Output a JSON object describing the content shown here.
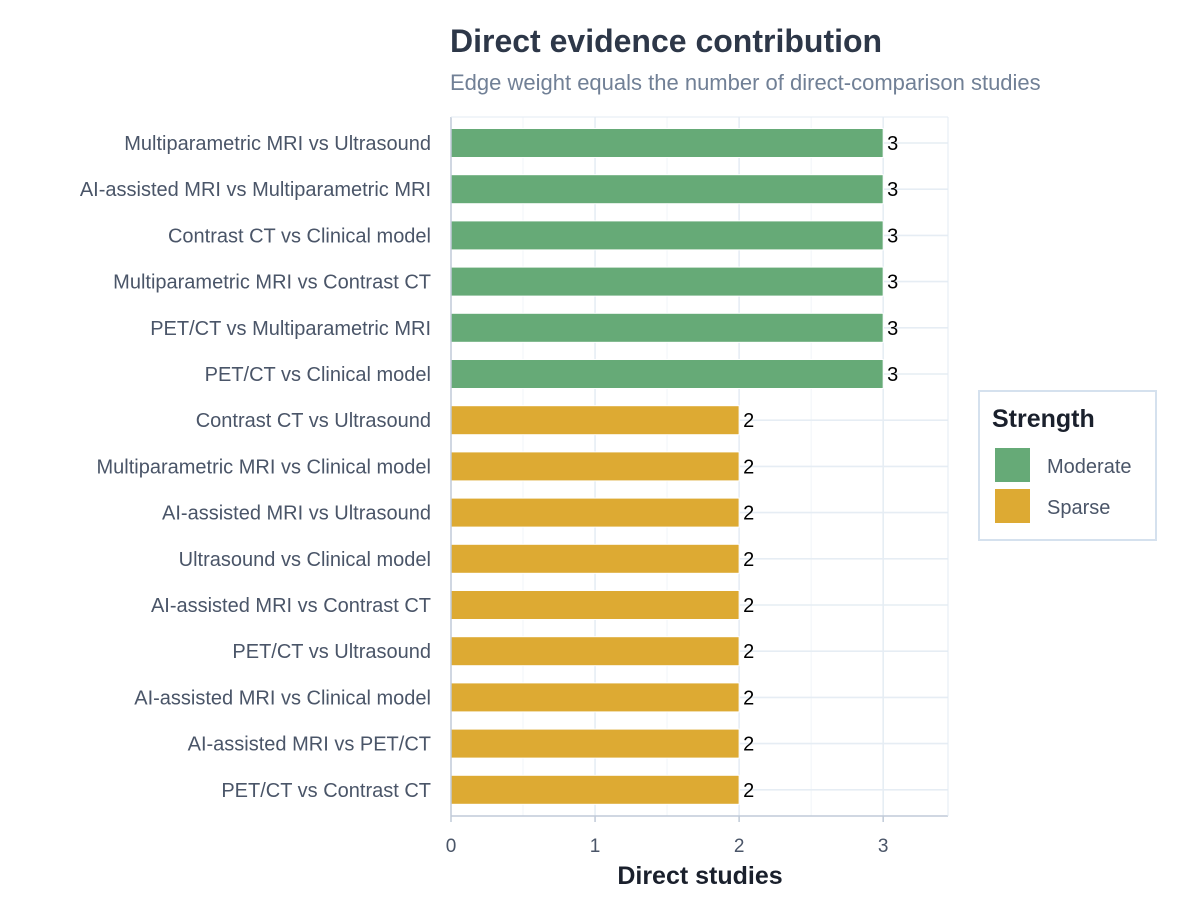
{
  "chart_data": {
    "type": "bar",
    "orientation": "horizontal",
    "title": "Direct evidence contribution",
    "subtitle": "Edge weight equals the number of direct-comparison studies",
    "xlabel": "Direct studies",
    "ylabel": "",
    "xlim": [
      0,
      3.45
    ],
    "xticks": [
      "0",
      "1",
      "2",
      "3"
    ],
    "grid": true,
    "legend": {
      "title": "Strength",
      "position": "right",
      "entries": [
        {
          "label": "Moderate",
          "color": "#66aa77"
        },
        {
          "label": "Sparse",
          "color": "#ddaa33"
        }
      ]
    },
    "bars": [
      {
        "label": "Multiparametric MRI vs Ultrasound",
        "value": 3,
        "value_label": "3",
        "strength": "Moderate"
      },
      {
        "label": "AI-assisted MRI vs Multiparametric MRI",
        "value": 3,
        "value_label": "3",
        "strength": "Moderate"
      },
      {
        "label": "Contrast CT vs Clinical model",
        "value": 3,
        "value_label": "3",
        "strength": "Moderate"
      },
      {
        "label": "Multiparametric MRI vs Contrast CT",
        "value": 3,
        "value_label": "3",
        "strength": "Moderate"
      },
      {
        "label": "PET/CT vs Multiparametric MRI",
        "value": 3,
        "value_label": "3",
        "strength": "Moderate"
      },
      {
        "label": "PET/CT vs Clinical model",
        "value": 3,
        "value_label": "3",
        "strength": "Moderate"
      },
      {
        "label": "Contrast CT vs Ultrasound",
        "value": 2,
        "value_label": "2",
        "strength": "Sparse"
      },
      {
        "label": "Multiparametric MRI vs Clinical model",
        "value": 2,
        "value_label": "2",
        "strength": "Sparse"
      },
      {
        "label": "AI-assisted MRI vs Ultrasound",
        "value": 2,
        "value_label": "2",
        "strength": "Sparse"
      },
      {
        "label": "Ultrasound vs Clinical model",
        "value": 2,
        "value_label": "2",
        "strength": "Sparse"
      },
      {
        "label": "AI-assisted MRI vs Contrast CT",
        "value": 2,
        "value_label": "2",
        "strength": "Sparse"
      },
      {
        "label": "PET/CT vs Ultrasound",
        "value": 2,
        "value_label": "2",
        "strength": "Sparse"
      },
      {
        "label": "AI-assisted MRI vs Clinical model",
        "value": 2,
        "value_label": "2",
        "strength": "Sparse"
      },
      {
        "label": "AI-assisted MRI vs PET/CT",
        "value": 2,
        "value_label": "2",
        "strength": "Sparse"
      },
      {
        "label": "PET/CT vs Contrast CT",
        "value": 2,
        "value_label": "2",
        "strength": "Sparse"
      }
    ]
  }
}
